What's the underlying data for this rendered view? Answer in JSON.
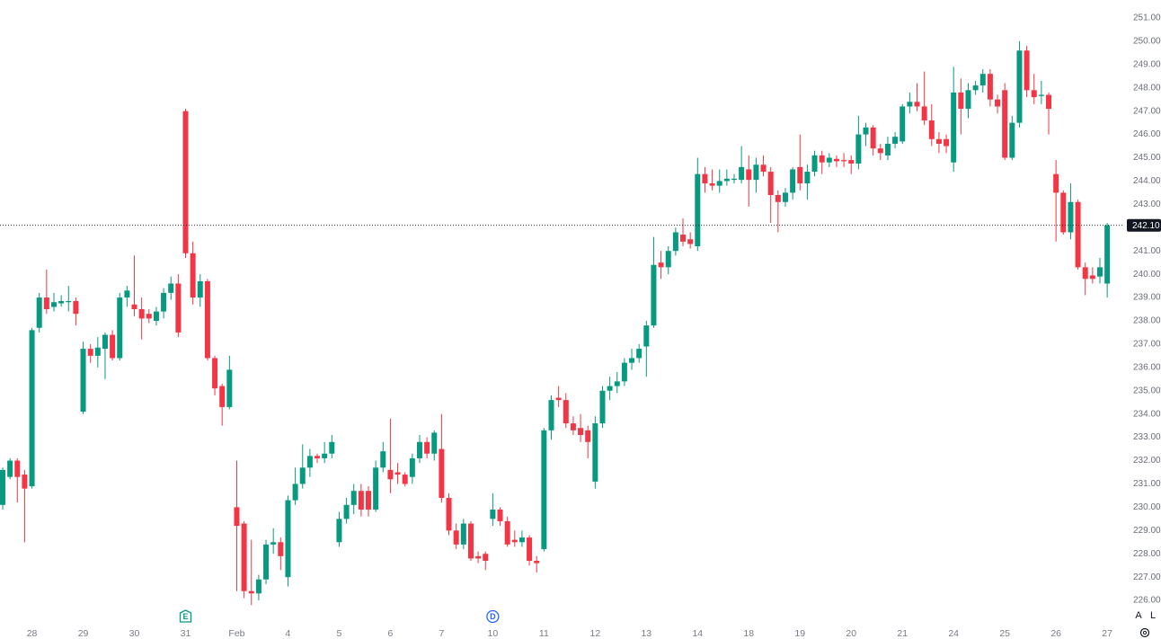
{
  "chart_data": {
    "type": "candlestick",
    "categories": [
      null,
      null,
      null,
      null,
      "28",
      null,
      null,
      null,
      null,
      null,
      null,
      "29",
      null,
      null,
      null,
      null,
      null,
      null,
      "30",
      null,
      null,
      null,
      null,
      null,
      null,
      "31",
      null,
      null,
      null,
      null,
      null,
      null,
      "Feb",
      null,
      null,
      null,
      null,
      null,
      null,
      "4",
      null,
      null,
      null,
      null,
      null,
      null,
      "5",
      null,
      null,
      null,
      null,
      null,
      null,
      "6",
      null,
      null,
      null,
      null,
      null,
      null,
      "7",
      null,
      null,
      null,
      null,
      null,
      null,
      "10",
      null,
      null,
      null,
      null,
      null,
      null,
      "11",
      null,
      null,
      null,
      null,
      null,
      null,
      "12",
      null,
      null,
      null,
      null,
      null,
      null,
      "13",
      null,
      null,
      null,
      null,
      null,
      null,
      "14",
      null,
      null,
      null,
      null,
      null,
      null,
      "18",
      null,
      null,
      null,
      null,
      null,
      null,
      "19",
      null,
      null,
      null,
      null,
      null,
      null,
      "20",
      null,
      null,
      null,
      null,
      null,
      null,
      "21",
      null,
      null,
      null,
      null,
      null,
      null,
      "24",
      null,
      null,
      null,
      null,
      null,
      null,
      "25",
      null,
      null,
      null,
      null,
      null,
      null,
      "26",
      null,
      null,
      null,
      null,
      null,
      null,
      "27"
    ],
    "open": [
      230.1,
      231.3,
      232.0,
      231.4,
      230.9,
      237.7,
      239.0,
      238.6,
      238.75,
      238.8,
      238.85,
      234.1,
      236.8,
      236.5,
      236.8,
      237.4,
      236.4,
      239.0,
      238.7,
      238.5,
      238.3,
      238.0,
      238.4,
      239.2,
      239.6,
      247.0,
      240.9,
      239.0,
      239.7,
      236.4,
      235.2,
      234.3,
      230.0,
      229.3,
      226.4,
      226.3,
      226.9,
      228.4,
      228.5,
      227.0,
      230.3,
      231.0,
      231.7,
      232.2,
      232.1,
      232.3,
      228.5,
      229.5,
      230.1,
      230.7,
      230.7,
      229.9,
      231.7,
      231.6,
      231.5,
      231.4,
      231.3,
      232.1,
      232.8,
      232.3,
      232.5,
      230.4,
      229.0,
      228.4,
      229.3,
      227.9,
      228.0,
      229.5,
      229.9,
      229.4,
      228.6,
      228.5,
      228.7,
      227.7,
      228.2,
      233.3,
      234.7,
      234.6,
      233.6,
      233.4,
      233.3,
      231.1,
      233.6,
      235.0,
      235.2,
      235.4,
      236.2,
      236.4,
      236.9,
      237.8,
      240.5,
      240.3,
      241.0,
      241.7,
      241.5,
      241.2,
      244.3,
      243.9,
      243.8,
      244.0,
      244.05,
      244.05,
      244.5,
      244.05,
      244.7,
      244.4,
      243.4,
      243.1,
      243.5,
      244.6,
      243.9,
      244.4,
      245.1,
      244.8,
      244.95,
      244.9,
      244.9,
      244.75,
      246.0,
      246.3,
      245.4,
      245.1,
      245.6,
      245.7,
      247.2,
      247.4,
      247.2,
      246.6,
      245.8,
      245.8,
      244.8,
      247.8,
      247.1,
      247.9,
      248.1,
      248.6,
      247.5,
      247.9,
      245.0,
      246.5,
      249.6,
      247.9,
      247.65,
      247.7,
      244.3,
      243.5,
      241.8,
      243.1,
      240.3,
      239.95,
      239.9,
      239.6
    ],
    "high": [
      231.7,
      232.1,
      232.1,
      231.6,
      237.7,
      239.2,
      240.2,
      239.2,
      239.1,
      239.5,
      239.0,
      237.1,
      237.0,
      237.3,
      237.5,
      237.6,
      239.2,
      239.5,
      240.8,
      239.0,
      238.5,
      238.6,
      239.4,
      239.9,
      240.0,
      247.1,
      241.4,
      240.0,
      239.8,
      236.5,
      235.3,
      236.5,
      232.0,
      229.4,
      228.6,
      227.1,
      228.6,
      229.1,
      228.7,
      230.5,
      231.7,
      232.7,
      232.5,
      232.3,
      232.8,
      233.1,
      229.8,
      230.4,
      231.0,
      231.0,
      230.9,
      232.0,
      232.8,
      233.8,
      231.9,
      231.5,
      232.3,
      233.1,
      233.0,
      233.3,
      234.0,
      230.6,
      229.3,
      229.5,
      229.4,
      228.1,
      228.1,
      230.6,
      230.0,
      229.6,
      229.0,
      229.0,
      228.8,
      227.9,
      233.4,
      234.8,
      235.2,
      234.9,
      233.9,
      234.0,
      233.5,
      233.9,
      235.2,
      235.6,
      235.8,
      236.4,
      236.8,
      237.0,
      238.0,
      241.6,
      241.0,
      241.2,
      242.0,
      242.4,
      241.8,
      245.0,
      244.6,
      244.5,
      244.5,
      244.5,
      244.3,
      245.5,
      245.1,
      245.0,
      245.1,
      244.6,
      243.6,
      243.7,
      244.6,
      246.0,
      244.7,
      245.3,
      245.3,
      245.2,
      245.1,
      245.2,
      245.1,
      246.8,
      246.5,
      246.4,
      245.6,
      245.9,
      246.1,
      247.3,
      247.8,
      248.2,
      248.7,
      247.3,
      246.1,
      246.0,
      248.9,
      248.4,
      248.2,
      248.3,
      248.8,
      248.8,
      247.7,
      248.2,
      246.8,
      250.0,
      249.8,
      248.6,
      248.3,
      247.8,
      244.9,
      243.6,
      243.9,
      243.2,
      240.5,
      240.3,
      240.7,
      242.2
    ],
    "low": [
      229.9,
      231.2,
      230.2,
      228.5,
      230.8,
      237.5,
      238.3,
      238.4,
      238.6,
      238.4,
      237.8,
      234.0,
      236.2,
      236.0,
      235.5,
      236.3,
      236.3,
      238.6,
      238.2,
      237.2,
      237.9,
      237.8,
      238.1,
      238.9,
      237.3,
      240.7,
      238.7,
      238.6,
      236.3,
      234.8,
      233.5,
      234.2,
      226.4,
      226.1,
      225.8,
      226.0,
      226.7,
      228.0,
      227.3,
      226.6,
      230.1,
      230.8,
      231.3,
      231.9,
      231.9,
      232.1,
      228.3,
      229.3,
      229.7,
      229.6,
      229.6,
      229.8,
      231.5,
      230.6,
      231.0,
      230.9,
      231.0,
      231.9,
      232.1,
      232.0,
      230.2,
      228.8,
      228.2,
      228.2,
      227.7,
      227.6,
      227.3,
      229.2,
      229.2,
      228.3,
      228.3,
      228.3,
      227.5,
      227.2,
      228.1,
      232.9,
      234.3,
      233.4,
      233.1,
      232.8,
      232.1,
      230.8,
      233.4,
      234.6,
      234.9,
      235.2,
      235.9,
      236.2,
      235.6,
      237.7,
      239.8,
      240.0,
      240.8,
      241.2,
      241.1,
      241.0,
      243.5,
      243.6,
      243.5,
      243.8,
      243.9,
      243.9,
      242.9,
      243.5,
      244.2,
      242.2,
      241.8,
      242.9,
      243.2,
      243.6,
      243.2,
      244.2,
      244.3,
      244.6,
      244.6,
      244.6,
      244.3,
      244.5,
      245.5,
      245.1,
      244.9,
      244.9,
      245.4,
      245.6,
      246.9,
      247.0,
      246.4,
      245.5,
      245.2,
      245.2,
      244.4,
      246.0,
      246.7,
      247.7,
      247.8,
      247.2,
      246.9,
      244.9,
      244.9,
      246.3,
      247.6,
      247.3,
      247.3,
      246.0,
      241.4,
      241.7,
      241.5,
      240.2,
      239.1,
      239.6,
      239.6,
      239.0
    ],
    "close": [
      231.6,
      232.0,
      231.3,
      230.8,
      237.6,
      239.0,
      238.5,
      238.8,
      238.85,
      238.85,
      238.3,
      236.8,
      236.5,
      236.85,
      237.4,
      236.4,
      239.0,
      239.3,
      238.5,
      238.1,
      238.1,
      238.4,
      239.2,
      239.6,
      237.5,
      240.9,
      239.0,
      239.7,
      236.4,
      235.1,
      234.3,
      235.9,
      229.2,
      226.4,
      226.3,
      226.9,
      228.4,
      228.5,
      227.9,
      230.3,
      231.0,
      231.7,
      232.2,
      232.1,
      232.3,
      232.8,
      229.5,
      230.1,
      230.7,
      229.9,
      229.9,
      231.7,
      232.4,
      231.2,
      231.4,
      231.0,
      232.1,
      232.8,
      232.3,
      233.2,
      230.4,
      229.0,
      228.4,
      229.3,
      227.8,
      227.8,
      227.7,
      229.9,
      229.4,
      228.4,
      228.5,
      228.7,
      227.7,
      227.6,
      233.3,
      234.6,
      234.6,
      233.6,
      233.3,
      233.1,
      232.8,
      233.6,
      235.0,
      235.2,
      235.4,
      236.2,
      236.4,
      236.8,
      237.8,
      240.4,
      240.3,
      241.0,
      241.8,
      241.4,
      241.3,
      244.3,
      243.9,
      243.8,
      244.0,
      244.1,
      244.1,
      244.6,
      244.05,
      244.7,
      244.4,
      243.4,
      243.1,
      243.5,
      244.5,
      243.9,
      244.4,
      245.1,
      244.8,
      245.0,
      244.85,
      244.85,
      244.75,
      246.0,
      246.3,
      245.4,
      245.2,
      245.6,
      245.9,
      247.2,
      247.4,
      247.2,
      246.6,
      245.8,
      245.6,
      245.5,
      247.8,
      247.1,
      247.9,
      248.1,
      248.6,
      247.5,
      247.2,
      245.0,
      246.5,
      249.6,
      247.9,
      247.6,
      247.7,
      247.1,
      243.5,
      241.8,
      243.1,
      240.3,
      239.8,
      239.8,
      240.3,
      242.1
    ],
    "up_color": "#089981",
    "down_color": "#f23645",
    "ylim": [
      225.54,
      251.77
    ],
    "yticks": [
      {
        "value": 226,
        "label": "226.00"
      },
      {
        "value": 227,
        "label": "227.00"
      },
      {
        "value": 228,
        "label": "228.00"
      },
      {
        "value": 229,
        "label": "229.00"
      },
      {
        "value": 230,
        "label": "230.00"
      },
      {
        "value": 231,
        "label": "231.00"
      },
      {
        "value": 232,
        "label": "232.00"
      },
      {
        "value": 233,
        "label": "233.00"
      },
      {
        "value": 234,
        "label": "234.00"
      },
      {
        "value": 235,
        "label": "235.00"
      },
      {
        "value": 236,
        "label": "236.00"
      },
      {
        "value": 237,
        "label": "237.00"
      },
      {
        "value": 238,
        "label": "238.00"
      },
      {
        "value": 239,
        "label": "239.00"
      },
      {
        "value": 240,
        "label": "240.00"
      },
      {
        "value": 241,
        "label": "241.00"
      },
      {
        "value": 242,
        "label": "242.00"
      },
      {
        "value": 243,
        "label": "243.00"
      },
      {
        "value": 244,
        "label": "244.00"
      },
      {
        "value": 245,
        "label": "245.00"
      },
      {
        "value": 246,
        "label": "246.00"
      },
      {
        "value": 247,
        "label": "247.00"
      },
      {
        "value": 248,
        "label": "248.00"
      },
      {
        "value": 249,
        "label": "249.00"
      },
      {
        "value": 250,
        "label": "250.00"
      },
      {
        "value": 251,
        "label": "251.00"
      }
    ],
    "grid": false,
    "last_price": {
      "value": 242.1,
      "label": "242.10"
    },
    "events": [
      {
        "label": "E",
        "category": "31",
        "color": "#089981",
        "shape": "square"
      },
      {
        "label": "D",
        "category": "10",
        "color": "#2962ff",
        "shape": "circle"
      }
    ],
    "scale_buttons": [
      "A",
      "L"
    ]
  }
}
